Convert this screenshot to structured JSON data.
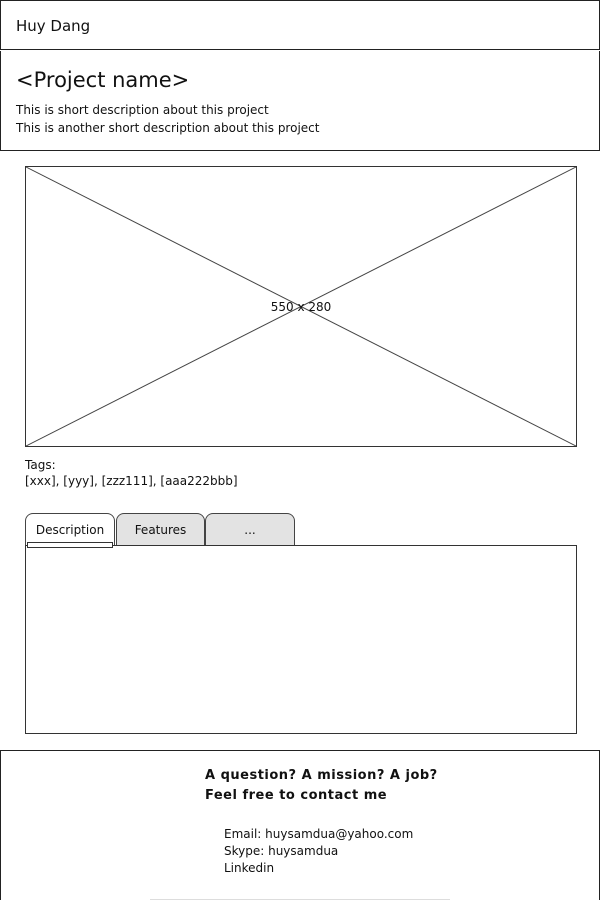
{
  "header": {
    "site_name": "Huy Dang"
  },
  "project": {
    "title": "<Project name>",
    "descriptions": [
      "This is short description about this project",
      "This is another short description about this project"
    ]
  },
  "image": {
    "size_label": "550 x 280"
  },
  "tags": {
    "label": "Tags:",
    "list": "[xxx], [yyy], [zzz111], [aaa222bbb]"
  },
  "tabs": [
    {
      "label": "Description",
      "active": true
    },
    {
      "label": "Features",
      "active": false
    },
    {
      "label": "...",
      "active": false
    }
  ],
  "footer": {
    "contact_lines": [
      "A question? A mission? A job?",
      "Feel free to contact me"
    ],
    "email": "Email: huysamdua@yahoo.com",
    "skype": "Skype: huysamdua",
    "linkedin": "Linkedin"
  },
  "colors": {
    "inactive_tab": "#e3e3e3",
    "border": "#222222"
  }
}
